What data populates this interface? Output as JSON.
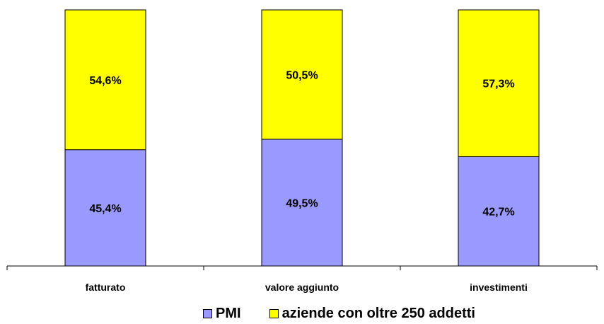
{
  "chart_data": {
    "type": "bar",
    "stacked": true,
    "categories": [
      "fatturato",
      "valore aggiunto",
      "investimenti"
    ],
    "ylim": [
      0,
      100
    ],
    "series": [
      {
        "name": "PMI",
        "values": [
          45.4,
          49.5,
          42.7
        ],
        "labels": [
          "45,4%",
          "49,5%",
          "42,7%"
        ],
        "color": "#9999ff"
      },
      {
        "name": "aziende con oltre 250 addetti",
        "values": [
          54.6,
          50.5,
          57.3
        ],
        "labels": [
          "54,6%",
          "50,5%",
          "57,3%"
        ],
        "color": "#ffff00"
      }
    ],
    "grid": false,
    "legend_position": "bottom"
  }
}
